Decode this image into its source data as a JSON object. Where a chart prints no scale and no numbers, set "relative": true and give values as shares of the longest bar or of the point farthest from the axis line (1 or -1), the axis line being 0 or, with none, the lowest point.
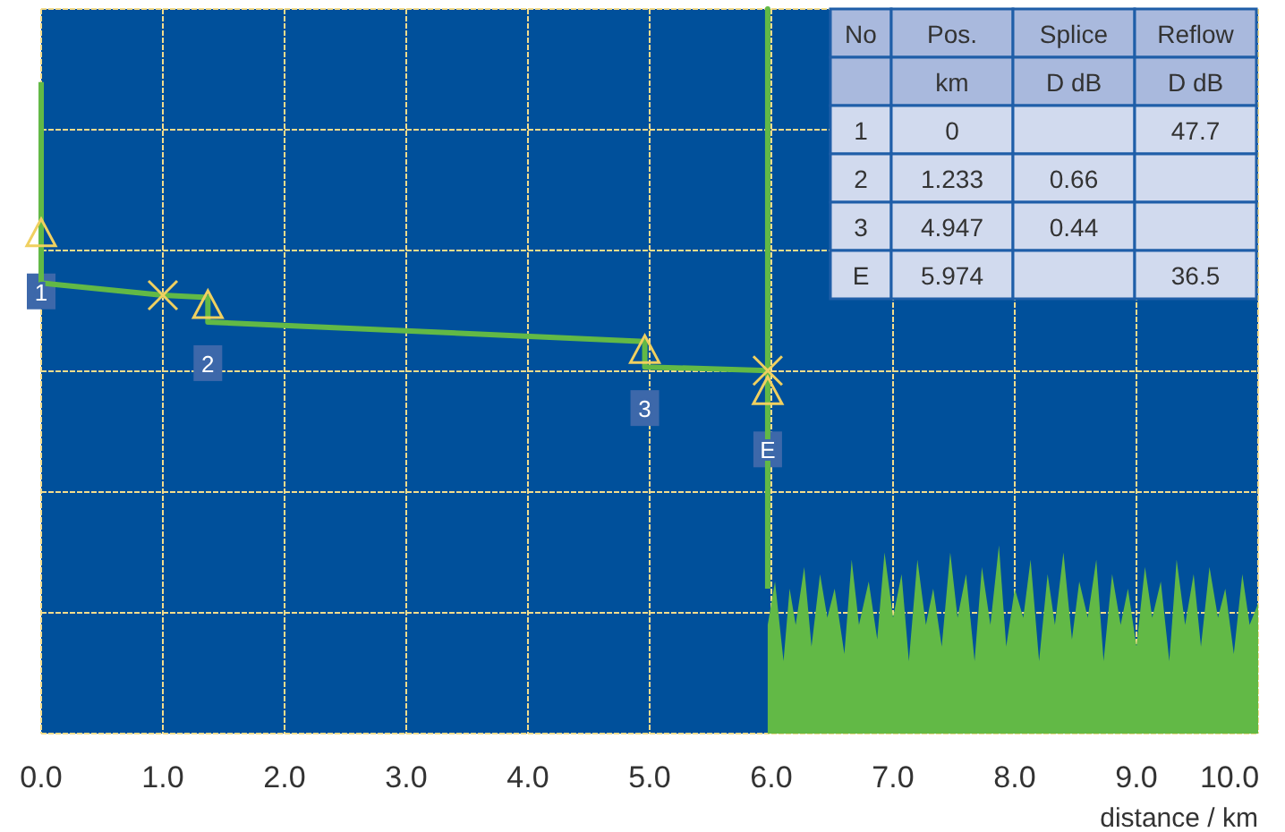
{
  "chart_data": {
    "type": "line",
    "relative": true,
    "xlabel": "distance / km",
    "xlim": [
      0,
      10
    ],
    "xticks": [
      {
        "value": 0,
        "label": "0.0"
      },
      {
        "value": 1,
        "label": "1.0"
      },
      {
        "value": 2,
        "label": "2.0"
      },
      {
        "value": 3,
        "label": "3.0"
      },
      {
        "value": 4,
        "label": "4.0"
      },
      {
        "value": 5,
        "label": "5.0"
      },
      {
        "value": 6,
        "label": "6.0"
      },
      {
        "value": 7,
        "label": "7.0"
      },
      {
        "value": 8,
        "label": "8.0"
      },
      {
        "value": 9,
        "label": "9.0"
      },
      {
        "value": 10,
        "label": "10.0"
      }
    ],
    "grid": true,
    "tick_labels": "x",
    "line_style": "solid",
    "series": [
      {
        "color": "#62b946",
        "marker": "none",
        "x": [
          0,
          0,
          0.1,
          1.0,
          1.37,
          1.37,
          4.96,
          4.96,
          5.97,
          5.97,
          5.97
        ],
        "values": [
          0.899,
          0.622,
          0.62,
          0.605,
          0.602,
          0.568,
          0.541,
          0.506,
          0.501,
          1,
          0.2
        ]
      },
      {
        "type": "area",
        "color": "#62b946",
        "x": [
          5.97,
          6.03,
          6.1,
          6.15,
          6.2,
          6.27,
          6.33,
          6.4,
          6.46,
          6.52,
          6.6,
          6.66,
          6.72,
          6.8,
          6.87,
          6.93,
          7.0,
          7.07,
          7.13,
          7.2,
          7.27,
          7.33,
          7.4,
          7.47,
          7.53,
          7.6,
          7.67,
          7.73,
          7.8,
          7.87,
          7.93,
          8.0,
          8.07,
          8.13,
          8.2,
          8.27,
          8.33,
          8.4,
          8.47,
          8.53,
          8.6,
          8.67,
          8.73,
          8.8,
          8.87,
          8.93,
          9.0,
          9.07,
          9.13,
          9.2,
          9.27,
          9.33,
          9.4,
          9.47,
          9.53,
          9.6,
          9.67,
          9.73,
          9.8,
          9.87,
          9.93,
          10.0
        ],
        "values": [
          0.15,
          0.21,
          0.1,
          0.2,
          0.15,
          0.23,
          0.12,
          0.22,
          0.16,
          0.2,
          0.11,
          0.24,
          0.15,
          0.21,
          0.13,
          0.25,
          0.16,
          0.22,
          0.1,
          0.24,
          0.15,
          0.2,
          0.12,
          0.25,
          0.16,
          0.22,
          0.1,
          0.23,
          0.15,
          0.26,
          0.12,
          0.2,
          0.16,
          0.24,
          0.1,
          0.22,
          0.15,
          0.25,
          0.13,
          0.21,
          0.16,
          0.24,
          0.1,
          0.22,
          0.15,
          0.2,
          0.12,
          0.23,
          0.16,
          0.21,
          0.1,
          0.24,
          0.15,
          0.22,
          0.12,
          0.23,
          0.16,
          0.2,
          0.11,
          0.22,
          0.15,
          0.18
        ]
      },
      {
        "type": "scatter",
        "color": "#f0d060",
        "marker": "triangle",
        "x": [
          0,
          1.37,
          4.96,
          5.97
        ],
        "values": [
          0.6855,
          0.5865,
          0.5245,
          0.4675
        ]
      },
      {
        "type": "scatter",
        "color": "#f0d060",
        "marker": "cross",
        "x": [
          1.0,
          5.97
        ],
        "values": [
          0.605,
          0.501
        ]
      }
    ],
    "annotations": [
      {
        "text": "1",
        "x": 0,
        "y": 0.667
      },
      {
        "text": "2",
        "x": 1.37,
        "y": 0.568
      },
      {
        "text": "3",
        "x": 4.96,
        "y": 0.506
      },
      {
        "text": "E",
        "x": 5.97,
        "y": 0.449
      },
      "No",
      "Pos.",
      "Splice",
      "Reflow",
      null,
      "km",
      "D dB",
      "D dB",
      "1",
      "0",
      null,
      "47.7",
      "2",
      "1.233",
      "0.66",
      null,
      "3",
      "4.947",
      "0.44",
      null,
      "E",
      "5.974",
      null,
      "36.5"
    ]
  }
}
